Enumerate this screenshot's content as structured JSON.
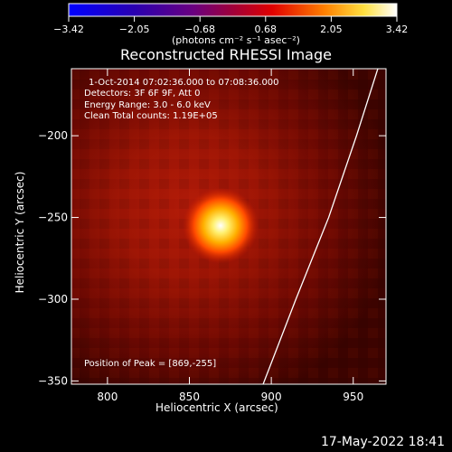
{
  "colorbar": {
    "tick_labels": [
      "−3.42",
      "−2.05",
      "−0.68",
      "0.68",
      "2.05",
      "3.42"
    ],
    "units": "(photons cm⁻² s⁻¹ asec⁻²)"
  },
  "title": "Reconstructed RHESSI Image",
  "info": {
    "time_range": "1-Oct-2014 07:02:36.000 to 07:08:36.000",
    "detectors": "Detectors: 3F 6F 9F, Att 0",
    "energy": "Energy Range: 3.0 - 6.0 keV",
    "clean": "Clean     Total counts: 1.19E+05",
    "peak": "Position of Peak = [869,-255]"
  },
  "timestamp": "17-May-2022 18:41",
  "chart_data": {
    "type": "heatmap",
    "title": "Reconstructed RHESSI Image",
    "xlabel": "Heliocentric X (arcsec)",
    "ylabel": "Heliocentric Y (arcsec)",
    "xlim": [
      778,
      970
    ],
    "ylim": [
      -352,
      -159
    ],
    "x_ticks": [
      800,
      850,
      900,
      950
    ],
    "y_ticks": [
      -200,
      -250,
      -300,
      -350
    ],
    "x_tick_labels": [
      "800",
      "850",
      "900",
      "950"
    ],
    "y_tick_labels": [
      "−200",
      "−250",
      "−300",
      "−350"
    ],
    "peak": {
      "x": 869,
      "y": -255
    },
    "colorbar_range": [
      -3.42,
      3.42
    ],
    "colormap": "RHESSI thermal (blue-purple-red-yellow-white)",
    "limb_curve": [
      {
        "x": 895,
        "y": -352
      },
      {
        "x": 915,
        "y": -300
      },
      {
        "x": 935,
        "y": -250
      },
      {
        "x": 952,
        "y": -200
      },
      {
        "x": 965,
        "y": -159
      }
    ]
  }
}
